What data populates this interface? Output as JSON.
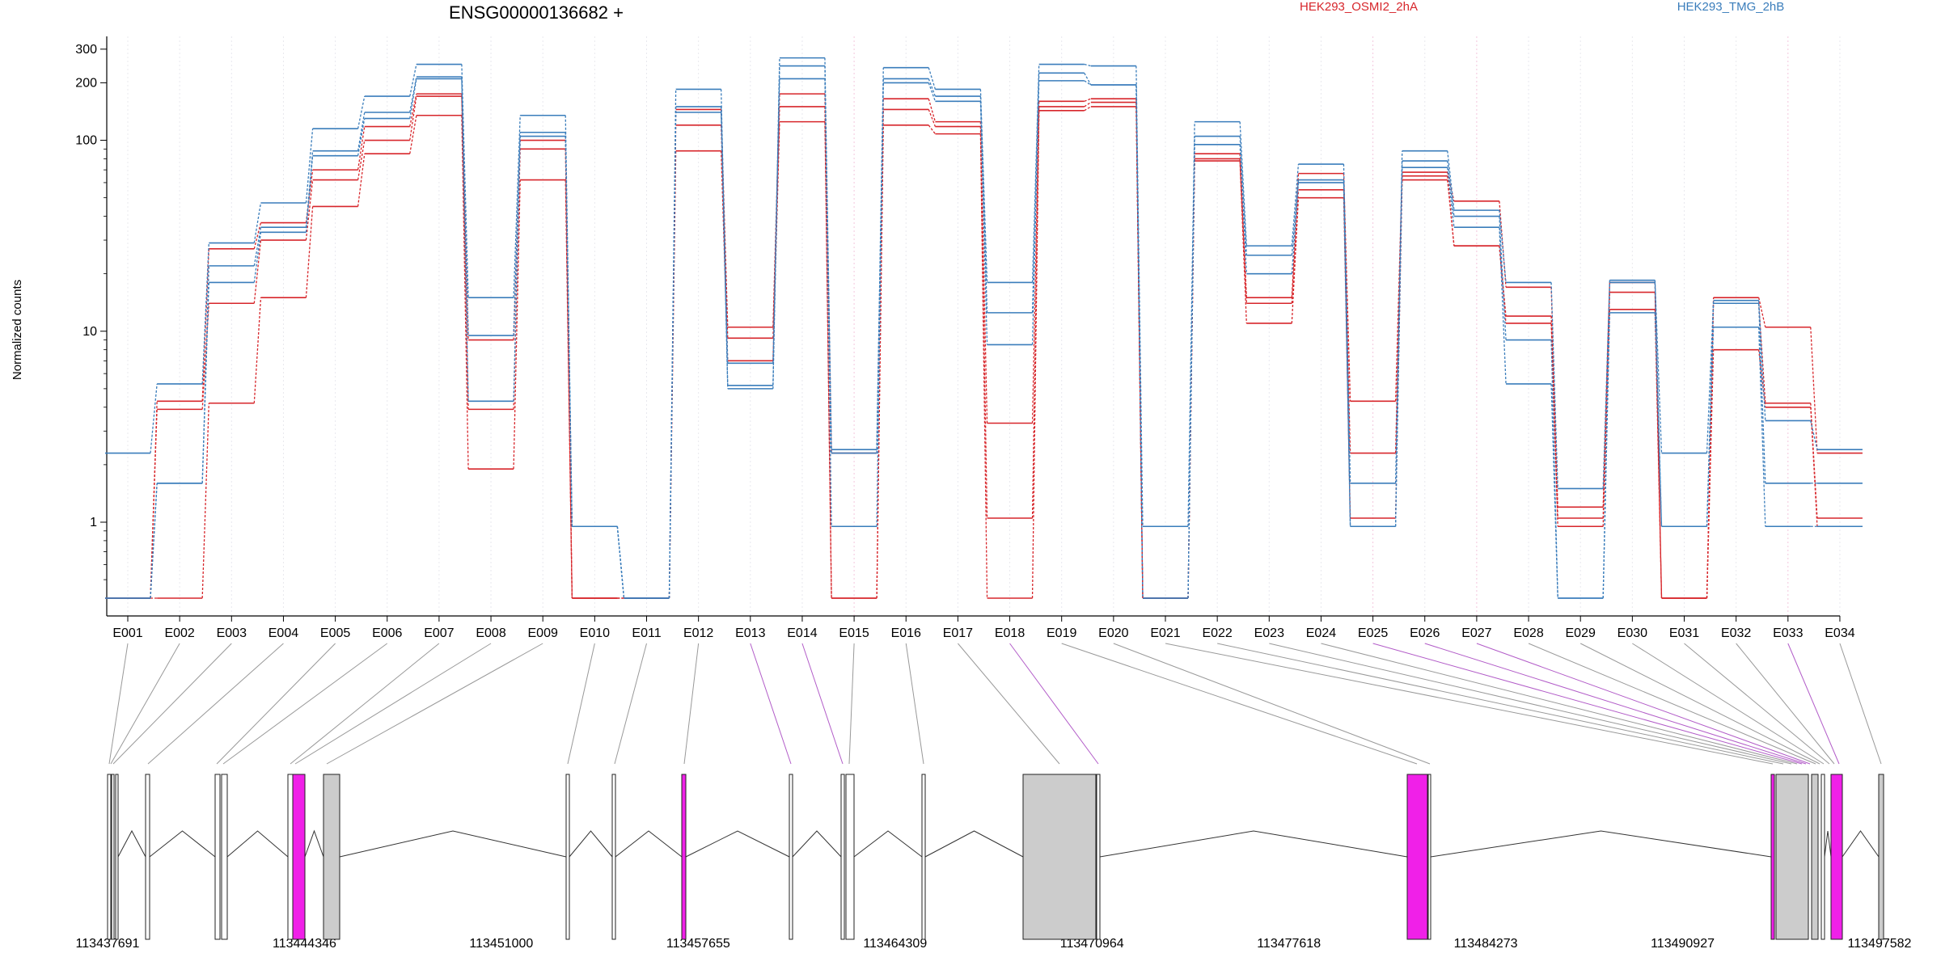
{
  "chart_data": {
    "type": "line",
    "title": "ENSG00000136682 +",
    "ylabel": "Normalized counts",
    "xlabel": "",
    "y_scale": "log",
    "ylim": [
      0.4,
      350
    ],
    "y_ticks": [
      1,
      10,
      100,
      200,
      300
    ],
    "y_tick_labels": [
      "1",
      "10",
      "100",
      "200",
      "300"
    ],
    "grid": "vertical dotted lines at exon centers",
    "legend_position": "top",
    "colors": {
      "HEK293_OSMI2_2hA": "#d7262b",
      "HEK293_TMG_2hB": "#3a7dbb",
      "exon": "#ffffff",
      "exon_tested": "#cccccc",
      "exon_significant": "#f020e8"
    },
    "categories": [
      "E001",
      "E002",
      "E003",
      "E004",
      "E005",
      "E006",
      "E007",
      "E008",
      "E009",
      "E010",
      "E011",
      "E012",
      "E013",
      "E014",
      "E015",
      "E016",
      "E017",
      "E018",
      "E019",
      "E020",
      "E021",
      "E022",
      "E023",
      "E024",
      "E025",
      "E026",
      "E027",
      "E028",
      "E029",
      "E030",
      "E031",
      "E032",
      "E033",
      "E034"
    ],
    "series": [
      {
        "name": "HEK293_OSMI2_2hA",
        "values": [
          0.4,
          4.3,
          27,
          37,
          70,
          118,
          175,
          9,
          100,
          0.4,
          0.4,
          145,
          10.5,
          175,
          2.3,
          165,
          125,
          3.3,
          160,
          165,
          0.4,
          85,
          15,
          67,
          4.3,
          68,
          48,
          17,
          1.2,
          18,
          0.4,
          15,
          10.5,
          2.3
        ]
      },
      {
        "name": "HEK293_OSMI2_2hA",
        "values": [
          0.4,
          3.9,
          14,
          30,
          62,
          100,
          170,
          3.9,
          90,
          0.4,
          0.4,
          120,
          9.2,
          150,
          0.4,
          145,
          118,
          1.05,
          150,
          158,
          0.4,
          80,
          14,
          55,
          2.3,
          65,
          28,
          12,
          1.05,
          16,
          0.4,
          14,
          4.2,
          1.05
        ]
      },
      {
        "name": "HEK293_OSMI2_2hA",
        "values": [
          0.4,
          0.4,
          4.2,
          15,
          45,
          85,
          135,
          1.9,
          62,
          0.4,
          0.4,
          88,
          7,
          125,
          0.4,
          120,
          108,
          0.4,
          143,
          150,
          0.4,
          78,
          11,
          50,
          1.05,
          62,
          28,
          11,
          0.95,
          13,
          0.4,
          8,
          4.0,
          0.95
        ]
      },
      {
        "name": "HEK293_TMG_2hB",
        "values": [
          2.3,
          5.3,
          29,
          47,
          115,
          170,
          250,
          15,
          135,
          0.95,
          0.4,
          185,
          5,
          270,
          2.4,
          240,
          185,
          18,
          250,
          245,
          0.95,
          125,
          28,
          75,
          1.6,
          88,
          43,
          18,
          1.5,
          18.5,
          2.3,
          14.5,
          3.4,
          2.4
        ]
      },
      {
        "name": "HEK293_TMG_2hB",
        "values": [
          0.4,
          1.6,
          22,
          35,
          88,
          140,
          215,
          9.5,
          110,
          0.95,
          0.4,
          150,
          6.8,
          210,
          2.3,
          210,
          170,
          12.5,
          225,
          195,
          0.4,
          105,
          25,
          62,
          0.95,
          78,
          40,
          9,
          0.4,
          18,
          0.95,
          14,
          1.6,
          1.6
        ]
      },
      {
        "name": "HEK293_TMG_2hB",
        "values": [
          0.4,
          1.6,
          18,
          33,
          83,
          130,
          210,
          4.3,
          105,
          0.95,
          0.4,
          140,
          5.2,
          245,
          0.95,
          200,
          160,
          8.5,
          205,
          195,
          0.4,
          95,
          20,
          60,
          0.95,
          72,
          35,
          5.3,
          0.4,
          12.5,
          0.95,
          10.5,
          0.95,
          0.95
        ]
      }
    ],
    "gene_model": {
      "coordinate_labels": [
        "113437691",
        "113444346",
        "113451000",
        "113457655",
        "113464309",
        "113470964",
        "113477618",
        "113484273",
        "113490927",
        "113497582"
      ]
    }
  },
  "legend": [
    {
      "label": "HEK293_OSMI2_2hA",
      "color": "#d7262b"
    },
    {
      "label": "HEK293_TMG_2hB",
      "color": "#3a7dbb"
    }
  ]
}
